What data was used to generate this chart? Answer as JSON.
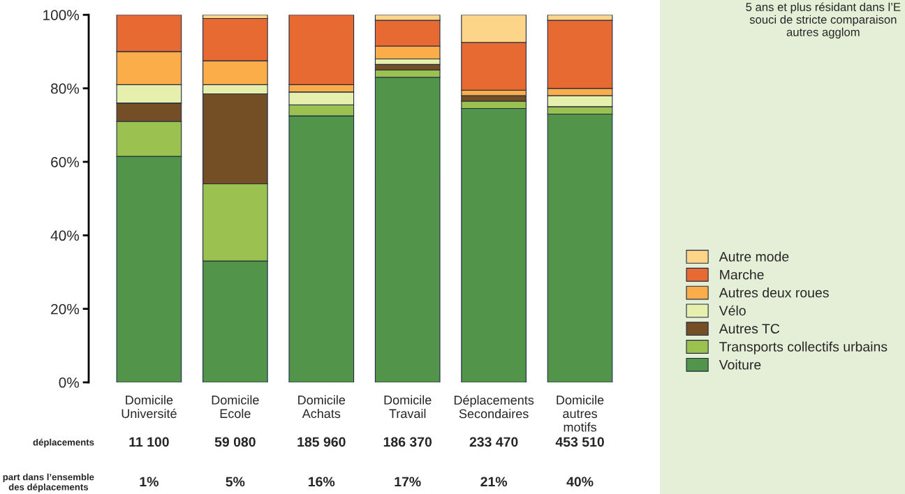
{
  "chart_data": {
    "type": "bar",
    "stacked": true,
    "categories": [
      "Domicile\nUniversité",
      "Domicile\nEcole",
      "Domicile\nAchats",
      "Domicile\nTravail",
      "Déplacements\nSecondaires",
      "Domicile\nautres\nmotifs"
    ],
    "series": [
      {
        "name": "Voiture",
        "color": "#52954a",
        "values": [
          61.5,
          33,
          72.5,
          83,
          74.5,
          73
        ]
      },
      {
        "name": "Transports collectifs urbains",
        "color": "#9bc250",
        "values": [
          9.5,
          21,
          3,
          2,
          2,
          2
        ]
      },
      {
        "name": "Autres TC",
        "color": "#744e25",
        "values": [
          5,
          24.5,
          0,
          1.5,
          1.5,
          0
        ]
      },
      {
        "name": "Vélo",
        "color": "#e7efac",
        "values": [
          5,
          2.5,
          3.5,
          1.5,
          0,
          3
        ]
      },
      {
        "name": "Autres deux roues",
        "color": "#fbad4a",
        "values": [
          9,
          6.5,
          2,
          3.5,
          1.5,
          2
        ]
      },
      {
        "name": "Marche",
        "color": "#e86a33",
        "values": [
          10,
          11.5,
          19,
          7,
          13,
          18.5
        ]
      },
      {
        "name": "Autre mode",
        "color": "#fdd589",
        "values": [
          0,
          1,
          0,
          1.5,
          7.5,
          1.5
        ]
      }
    ],
    "ylim": [
      0,
      100
    ],
    "yticks": [
      {
        "value": 0,
        "label": "0%"
      },
      {
        "value": 20,
        "label": "20%"
      },
      {
        "value": 40,
        "label": "40%"
      },
      {
        "value": 60,
        "label": "60%"
      },
      {
        "value": 80,
        "label": "80%"
      },
      {
        "value": 100,
        "label": "100%"
      }
    ],
    "grid": false,
    "legend": "right",
    "annotations": [
      "déplacements",
      "11 100",
      "59 080",
      "185 960",
      "186 370",
      "233 470",
      "453 510",
      "part dans l’ensemble\ndes déplacements",
      "1%",
      "5%",
      "16%",
      "17%",
      "21%",
      "40%",
      "5 ans et plus résidant dans l’E\nsouci de stricte comparaison\nautres agglom"
    ]
  }
}
